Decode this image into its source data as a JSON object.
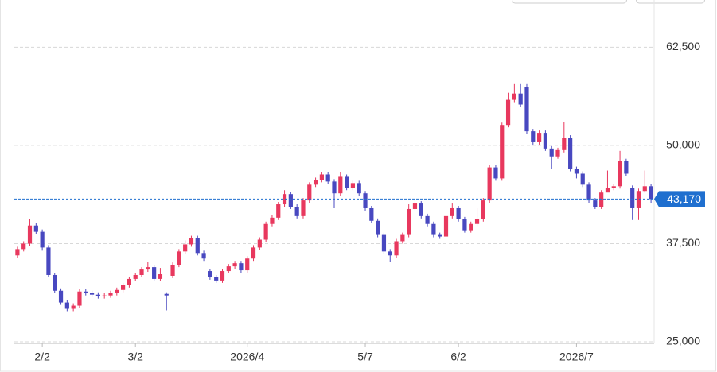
{
  "chart_data": {
    "type": "candlestick",
    "up_color": "#e8385e",
    "down_color": "#4848c0",
    "ylim": [
      25000,
      68000
    ],
    "yticks": [
      {
        "value": 25000,
        "label": "25,000"
      },
      {
        "value": 37500,
        "label": "37,500"
      },
      {
        "value": 50000,
        "label": "50,000"
      },
      {
        "value": 62500,
        "label": "62,500"
      }
    ],
    "grid": true,
    "last_price": {
      "value": 43170,
      "label": "43,170",
      "color": "#1f6fcf"
    },
    "categories": [
      null,
      null,
      null,
      null,
      "2/2",
      null,
      null,
      null,
      null,
      null,
      null,
      null,
      null,
      null,
      null,
      null,
      null,
      null,
      null,
      "3/2",
      null,
      null,
      null,
      null,
      null,
      null,
      null,
      null,
      null,
      null,
      null,
      null,
      null,
      null,
      null,
      null,
      null,
      "2026/4",
      null,
      null,
      null,
      null,
      null,
      null,
      null,
      null,
      null,
      null,
      null,
      null,
      null,
      null,
      null,
      null,
      null,
      null,
      "5/7",
      null,
      null,
      null,
      null,
      null,
      null,
      null,
      null,
      null,
      null,
      null,
      null,
      null,
      null,
      "6/2",
      null,
      null,
      null,
      null,
      null,
      null,
      null,
      null,
      null,
      null,
      null,
      null,
      null,
      null,
      null,
      null,
      null,
      null,
      "2026/7",
      null,
      null,
      null,
      null,
      null,
      null,
      null,
      null,
      null,
      null,
      null,
      null
    ],
    "open": [
      36000,
      36800,
      37500,
      39800,
      39000,
      37000,
      33500,
      31500,
      30000,
      29200,
      29600,
      31400,
      31200,
      31000,
      30800,
      30900,
      31200,
      31600,
      32200,
      33000,
      33500,
      34200,
      34500,
      33000,
      31100,
      33400,
      34800,
      36500,
      37400,
      38200,
      36300,
      34000,
      33200,
      32800,
      34000,
      34600,
      35000,
      34100,
      35600,
      37000,
      38000,
      40000,
      40800,
      42500,
      43800,
      42200,
      41000,
      43000,
      45000,
      45600,
      46300,
      45400,
      43900,
      46000,
      44600,
      45200,
      43900,
      42000,
      40400,
      38600,
      36500,
      36000,
      37800,
      38600,
      41900,
      42600,
      41000,
      40000,
      38600,
      38400,
      41000,
      42000,
      40600,
      39200,
      40000,
      40600,
      43000,
      47200,
      45800,
      52600,
      55800,
      56600,
      57400,
      51800,
      50400,
      51600,
      49600,
      48600,
      49400,
      51000,
      47000,
      46400,
      45000,
      43000,
      42200,
      44000,
      44600,
      44800,
      48000,
      44600,
      42000,
      44200,
      44800
    ],
    "high": [
      37100,
      37800,
      40600,
      40100,
      39300,
      37300,
      33800,
      31800,
      30300,
      29900,
      31700,
      31700,
      31500,
      31300,
      31200,
      31500,
      31900,
      32500,
      33300,
      33800,
      34500,
      35200,
      34800,
      34400,
      31300,
      35100,
      36800,
      37900,
      38500,
      38500,
      36600,
      34300,
      33500,
      34300,
      34900,
      35300,
      35300,
      35900,
      37300,
      38300,
      40300,
      41100,
      42800,
      44300,
      44100,
      42500,
      43300,
      45300,
      45900,
      46600,
      46600,
      45700,
      46600,
      46300,
      45500,
      45500,
      44200,
      42300,
      40700,
      38900,
      36800,
      38100,
      38900,
      42500,
      43100,
      42900,
      41300,
      40300,
      38900,
      41300,
      42600,
      42300,
      40900,
      40300,
      42000,
      43300,
      47500,
      47500,
      52900,
      56700,
      57800,
      57800,
      57800,
      52100,
      51900,
      51900,
      49900,
      49700,
      53000,
      51300,
      47300,
      46700,
      45300,
      43300,
      44300,
      46800,
      45100,
      49300,
      48300,
      44900,
      44500,
      46800,
      45100
    ],
    "low": [
      35700,
      36500,
      37200,
      38700,
      36600,
      33200,
      31200,
      29700,
      28900,
      28900,
      29300,
      30900,
      30700,
      30500,
      30500,
      30600,
      30900,
      31300,
      31900,
      32700,
      33200,
      33900,
      32700,
      32700,
      29000,
      33100,
      34500,
      36200,
      37100,
      36000,
      35300,
      32900,
      32500,
      32500,
      33700,
      34300,
      33800,
      33800,
      35300,
      36700,
      37700,
      39700,
      40500,
      42200,
      41900,
      40700,
      40700,
      42700,
      44700,
      45300,
      45100,
      42000,
      43600,
      44300,
      44300,
      43600,
      41700,
      40100,
      38300,
      36200,
      35200,
      35700,
      37500,
      38300,
      41600,
      40700,
      39700,
      38300,
      38100,
      38100,
      40700,
      40300,
      38900,
      38900,
      39700,
      40300,
      42700,
      45500,
      45500,
      52300,
      55500,
      54900,
      51500,
      50100,
      50100,
      49300,
      47000,
      48300,
      49100,
      46700,
      45800,
      44700,
      42700,
      41900,
      41900,
      44300,
      44300,
      44500,
      46100,
      40500,
      40500,
      44000,
      42700
    ],
    "close": [
      36800,
      37500,
      39800,
      39000,
      37000,
      33500,
      31500,
      30000,
      29200,
      29600,
      31400,
      31200,
      31000,
      30800,
      30900,
      31200,
      31600,
      32200,
      33000,
      33500,
      34200,
      34500,
      33000,
      33600,
      30900,
      34800,
      36500,
      37400,
      38200,
      36300,
      35600,
      33200,
      32800,
      34000,
      34600,
      35000,
      34100,
      35600,
      37000,
      38000,
      40000,
      40800,
      42500,
      43800,
      42200,
      41000,
      43000,
      45000,
      45600,
      46300,
      45400,
      43900,
      46000,
      44600,
      45200,
      43900,
      42000,
      40400,
      38600,
      36500,
      36000,
      37800,
      38600,
      41900,
      42600,
      41000,
      40000,
      38600,
      38400,
      41000,
      42000,
      40600,
      39200,
      40000,
      40600,
      43000,
      47200,
      45800,
      52600,
      55800,
      56600,
      55200,
      51800,
      50400,
      51600,
      49600,
      48600,
      49400,
      51000,
      47000,
      46400,
      45000,
      43000,
      42200,
      44000,
      44600,
      44800,
      48000,
      46400,
      42000,
      44200,
      44800,
      43170
    ]
  }
}
